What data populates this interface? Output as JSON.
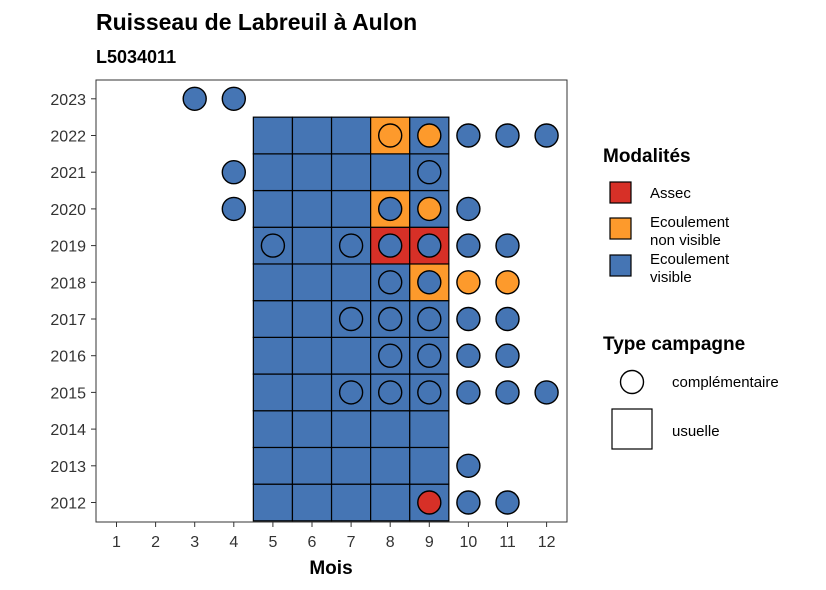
{
  "chart_data": {
    "type": "heatmap",
    "title": "Ruisseau de Labreuil à Aulon",
    "subtitle": "L5034011",
    "xlabel": "Mois",
    "ylabel": "",
    "x_ticks": [
      "1",
      "2",
      "3",
      "4",
      "5",
      "6",
      "7",
      "8",
      "9",
      "10",
      "11",
      "12"
    ],
    "y_ticks": [
      "2012",
      "2013",
      "2014",
      "2015",
      "2016",
      "2017",
      "2018",
      "2019",
      "2020",
      "2021",
      "2022",
      "2023"
    ],
    "xlim": [
      1,
      12
    ],
    "ylim": [
      2012,
      2023
    ],
    "grid": false,
    "legend_position": "right",
    "colors": {
      "Assec": "#d73027",
      "Ecoulement non visible": "#fd9a2c",
      "Ecoulement visible": "#4575b4"
    },
    "legend_modalites": {
      "title": "Modalités",
      "entries": [
        {
          "key": "Assec",
          "lines": [
            "Assec"
          ]
        },
        {
          "key": "Ecoulement non visible",
          "lines": [
            "Ecoulement",
            "non visible"
          ]
        },
        {
          "key": "Ecoulement visible",
          "lines": [
            "Ecoulement",
            "visible"
          ]
        }
      ]
    },
    "legend_campagne": {
      "title": "Type campagne",
      "entries": [
        {
          "shape": "circle",
          "label": "complémentaire"
        },
        {
          "shape": "square",
          "label": "usuelle"
        }
      ]
    },
    "usuelle": [
      {
        "year": 2012,
        "month": 5,
        "modalite": "Ecoulement visible"
      },
      {
        "year": 2012,
        "month": 6,
        "modalite": "Ecoulement visible"
      },
      {
        "year": 2012,
        "month": 7,
        "modalite": "Ecoulement visible"
      },
      {
        "year": 2012,
        "month": 8,
        "modalite": "Ecoulement visible"
      },
      {
        "year": 2012,
        "month": 9,
        "modalite": "Ecoulement visible"
      },
      {
        "year": 2013,
        "month": 5,
        "modalite": "Ecoulement visible"
      },
      {
        "year": 2013,
        "month": 6,
        "modalite": "Ecoulement visible"
      },
      {
        "year": 2013,
        "month": 7,
        "modalite": "Ecoulement visible"
      },
      {
        "year": 2013,
        "month": 8,
        "modalite": "Ecoulement visible"
      },
      {
        "year": 2013,
        "month": 9,
        "modalite": "Ecoulement visible"
      },
      {
        "year": 2014,
        "month": 5,
        "modalite": "Ecoulement visible"
      },
      {
        "year": 2014,
        "month": 6,
        "modalite": "Ecoulement visible"
      },
      {
        "year": 2014,
        "month": 7,
        "modalite": "Ecoulement visible"
      },
      {
        "year": 2014,
        "month": 8,
        "modalite": "Ecoulement visible"
      },
      {
        "year": 2014,
        "month": 9,
        "modalite": "Ecoulement visible"
      },
      {
        "year": 2015,
        "month": 5,
        "modalite": "Ecoulement visible"
      },
      {
        "year": 2015,
        "month": 6,
        "modalite": "Ecoulement visible"
      },
      {
        "year": 2015,
        "month": 7,
        "modalite": "Ecoulement visible"
      },
      {
        "year": 2015,
        "month": 8,
        "modalite": "Ecoulement visible"
      },
      {
        "year": 2015,
        "month": 9,
        "modalite": "Ecoulement visible"
      },
      {
        "year": 2016,
        "month": 5,
        "modalite": "Ecoulement visible"
      },
      {
        "year": 2016,
        "month": 6,
        "modalite": "Ecoulement visible"
      },
      {
        "year": 2016,
        "month": 7,
        "modalite": "Ecoulement visible"
      },
      {
        "year": 2016,
        "month": 8,
        "modalite": "Ecoulement visible"
      },
      {
        "year": 2016,
        "month": 9,
        "modalite": "Ecoulement visible"
      },
      {
        "year": 2017,
        "month": 5,
        "modalite": "Ecoulement visible"
      },
      {
        "year": 2017,
        "month": 6,
        "modalite": "Ecoulement visible"
      },
      {
        "year": 2017,
        "month": 7,
        "modalite": "Ecoulement visible"
      },
      {
        "year": 2017,
        "month": 8,
        "modalite": "Ecoulement visible"
      },
      {
        "year": 2017,
        "month": 9,
        "modalite": "Ecoulement visible"
      },
      {
        "year": 2018,
        "month": 5,
        "modalite": "Ecoulement visible"
      },
      {
        "year": 2018,
        "month": 6,
        "modalite": "Ecoulement visible"
      },
      {
        "year": 2018,
        "month": 7,
        "modalite": "Ecoulement visible"
      },
      {
        "year": 2018,
        "month": 8,
        "modalite": "Ecoulement visible"
      },
      {
        "year": 2018,
        "month": 9,
        "modalite": "Ecoulement non visible"
      },
      {
        "year": 2019,
        "month": 5,
        "modalite": "Ecoulement visible"
      },
      {
        "year": 2019,
        "month": 6,
        "modalite": "Ecoulement visible"
      },
      {
        "year": 2019,
        "month": 7,
        "modalite": "Ecoulement visible"
      },
      {
        "year": 2019,
        "month": 8,
        "modalite": "Assec"
      },
      {
        "year": 2019,
        "month": 9,
        "modalite": "Assec"
      },
      {
        "year": 2020,
        "month": 5,
        "modalite": "Ecoulement visible"
      },
      {
        "year": 2020,
        "month": 6,
        "modalite": "Ecoulement visible"
      },
      {
        "year": 2020,
        "month": 7,
        "modalite": "Ecoulement visible"
      },
      {
        "year": 2020,
        "month": 8,
        "modalite": "Ecoulement non visible"
      },
      {
        "year": 2020,
        "month": 9,
        "modalite": "Ecoulement visible"
      },
      {
        "year": 2021,
        "month": 5,
        "modalite": "Ecoulement visible"
      },
      {
        "year": 2021,
        "month": 6,
        "modalite": "Ecoulement visible"
      },
      {
        "year": 2021,
        "month": 7,
        "modalite": "Ecoulement visible"
      },
      {
        "year": 2021,
        "month": 8,
        "modalite": "Ecoulement visible"
      },
      {
        "year": 2021,
        "month": 9,
        "modalite": "Ecoulement visible"
      },
      {
        "year": 2022,
        "month": 5,
        "modalite": "Ecoulement visible"
      },
      {
        "year": 2022,
        "month": 6,
        "modalite": "Ecoulement visible"
      },
      {
        "year": 2022,
        "month": 7,
        "modalite": "Ecoulement visible"
      },
      {
        "year": 2022,
        "month": 8,
        "modalite": "Ecoulement non visible"
      },
      {
        "year": 2022,
        "month": 9,
        "modalite": "Ecoulement visible"
      }
    ],
    "complementaire": [
      {
        "year": 2012,
        "month": 9,
        "modalite": "Assec"
      },
      {
        "year": 2012,
        "month": 10,
        "modalite": "Ecoulement visible"
      },
      {
        "year": 2012,
        "month": 11,
        "modalite": "Ecoulement visible"
      },
      {
        "year": 2013,
        "month": 10,
        "modalite": "Ecoulement visible"
      },
      {
        "year": 2015,
        "month": 7,
        "modalite": "Ecoulement visible"
      },
      {
        "year": 2015,
        "month": 8,
        "modalite": "Ecoulement visible"
      },
      {
        "year": 2015,
        "month": 9,
        "modalite": "Ecoulement visible"
      },
      {
        "year": 2015,
        "month": 10,
        "modalite": "Ecoulement visible"
      },
      {
        "year": 2015,
        "month": 11,
        "modalite": "Ecoulement visible"
      },
      {
        "year": 2015,
        "month": 12,
        "modalite": "Ecoulement visible"
      },
      {
        "year": 2016,
        "month": 8,
        "modalite": "Ecoulement visible"
      },
      {
        "year": 2016,
        "month": 9,
        "modalite": "Ecoulement visible"
      },
      {
        "year": 2016,
        "month": 10,
        "modalite": "Ecoulement visible"
      },
      {
        "year": 2016,
        "month": 11,
        "modalite": "Ecoulement visible"
      },
      {
        "year": 2017,
        "month": 7,
        "modalite": "Ecoulement visible"
      },
      {
        "year": 2017,
        "month": 8,
        "modalite": "Ecoulement visible"
      },
      {
        "year": 2017,
        "month": 9,
        "modalite": "Ecoulement visible"
      },
      {
        "year": 2017,
        "month": 10,
        "modalite": "Ecoulement visible"
      },
      {
        "year": 2017,
        "month": 11,
        "modalite": "Ecoulement visible"
      },
      {
        "year": 2018,
        "month": 8,
        "modalite": "Ecoulement visible"
      },
      {
        "year": 2018,
        "month": 9,
        "modalite": "Ecoulement visible"
      },
      {
        "year": 2018,
        "month": 10,
        "modalite": "Ecoulement non visible"
      },
      {
        "year": 2018,
        "month": 11,
        "modalite": "Ecoulement non visible"
      },
      {
        "year": 2019,
        "month": 5,
        "modalite": "Ecoulement visible"
      },
      {
        "year": 2019,
        "month": 7,
        "modalite": "Ecoulement visible"
      },
      {
        "year": 2019,
        "month": 8,
        "modalite": "Ecoulement visible"
      },
      {
        "year": 2019,
        "month": 9,
        "modalite": "Ecoulement visible"
      },
      {
        "year": 2019,
        "month": 10,
        "modalite": "Ecoulement visible"
      },
      {
        "year": 2019,
        "month": 11,
        "modalite": "Ecoulement visible"
      },
      {
        "year": 2020,
        "month": 4,
        "modalite": "Ecoulement visible"
      },
      {
        "year": 2020,
        "month": 8,
        "modalite": "Ecoulement visible"
      },
      {
        "year": 2020,
        "month": 9,
        "modalite": "Ecoulement non visible"
      },
      {
        "year": 2020,
        "month": 10,
        "modalite": "Ecoulement visible"
      },
      {
        "year": 2021,
        "month": 4,
        "modalite": "Ecoulement visible"
      },
      {
        "year": 2021,
        "month": 9,
        "modalite": "Ecoulement visible"
      },
      {
        "year": 2022,
        "month": 8,
        "modalite": "Ecoulement non visible"
      },
      {
        "year": 2022,
        "month": 9,
        "modalite": "Ecoulement non visible"
      },
      {
        "year": 2022,
        "month": 10,
        "modalite": "Ecoulement visible"
      },
      {
        "year": 2022,
        "month": 11,
        "modalite": "Ecoulement visible"
      },
      {
        "year": 2022,
        "month": 12,
        "modalite": "Ecoulement visible"
      },
      {
        "year": 2023,
        "month": 3,
        "modalite": "Ecoulement visible"
      },
      {
        "year": 2023,
        "month": 4,
        "modalite": "Ecoulement visible"
      }
    ]
  }
}
